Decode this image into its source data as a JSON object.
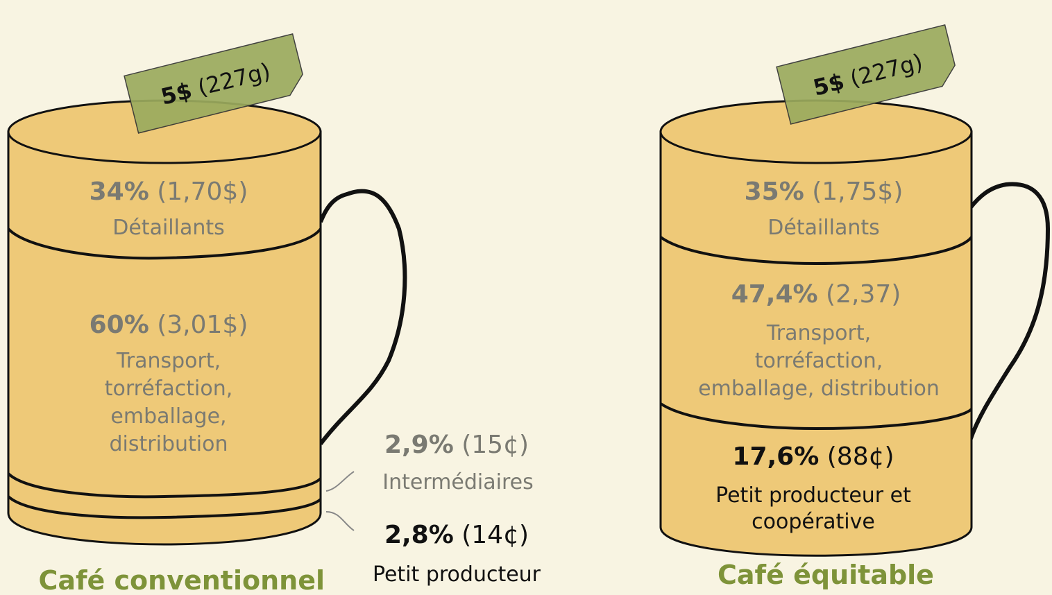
{
  "mugs": [
    {
      "tag": {
        "price": "5$",
        "weight": "(227g)"
      },
      "segments": [
        {
          "percent": "34%",
          "amount": "(1,70$)",
          "label": [
            "Détaillants"
          ]
        },
        {
          "percent": "60%",
          "amount": "(3,01$)",
          "label": [
            "Transport,",
            "torréfaction,",
            "emballage,",
            "distribution"
          ]
        },
        {
          "percent": "2,9%",
          "amount": "(15¢)",
          "label": [
            "Intermédiaires"
          ]
        },
        {
          "percent": "2,8%",
          "amount": "(14¢)",
          "label": [
            "Petit producteur"
          ]
        }
      ],
      "title": "Café conventionnel"
    },
    {
      "tag": {
        "price": "5$",
        "weight": "(227g)"
      },
      "segments": [
        {
          "percent": "35%",
          "amount": "(1,75$)",
          "label": [
            "Détaillants"
          ]
        },
        {
          "percent": "47,4%",
          "amount": "(2,37)",
          "label": [
            "Transport,",
            "torréfaction,",
            "emballage, distribution"
          ]
        },
        {
          "percent": "17,6%",
          "amount": "(88¢)",
          "label": [
            "Petit producteur et",
            "coopérative"
          ]
        }
      ],
      "title": "Café équitable"
    }
  ]
}
